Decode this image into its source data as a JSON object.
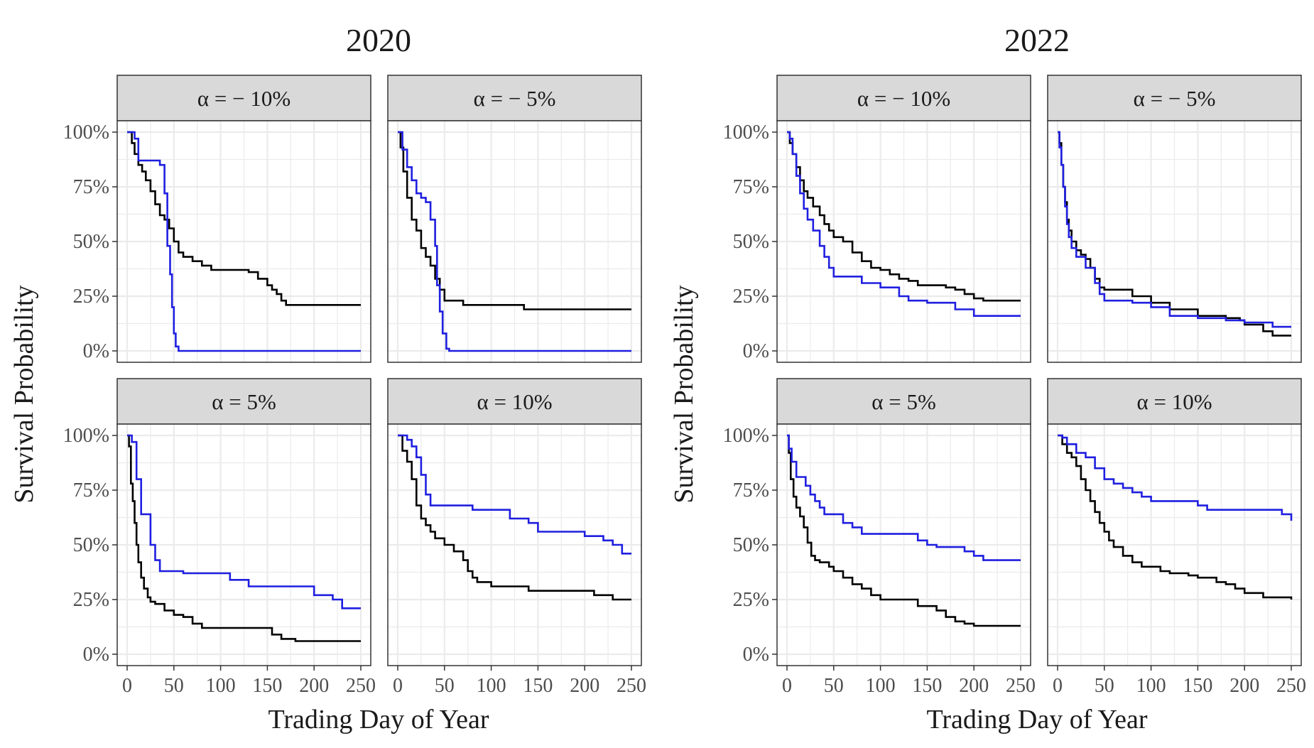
{
  "figure": {
    "groups": [
      {
        "title": "2020",
        "xlabel": "Trading Day of Year",
        "ylabel": "Survival Probability"
      },
      {
        "title": "2022",
        "xlabel": "Trading Day of Year",
        "ylabel": "Survival Probability"
      }
    ],
    "x_ticks": [
      "0",
      "50",
      "100",
      "150",
      "200",
      "250"
    ],
    "y_ticks": [
      "0%",
      "25%",
      "50%",
      "75%",
      "100%"
    ]
  },
  "colors": {
    "series_black": "#000000",
    "series_blue": "#1f1fe0",
    "strip_fill": "#d9d9d9",
    "grid": "#ebebeb",
    "panel_border": "#333333"
  },
  "chart_data": [
    {
      "type": "line",
      "group": "2020",
      "panel_label": "α = − 10%",
      "xlim": [
        0,
        250
      ],
      "ylim": [
        0,
        1
      ],
      "grid": true,
      "step": true,
      "series": [
        {
          "color": "black",
          "x": [
            0,
            5,
            8,
            12,
            16,
            20,
            25,
            30,
            35,
            40,
            45,
            50,
            55,
            60,
            70,
            80,
            90,
            100,
            120,
            130,
            140,
            150,
            155,
            160,
            165,
            170,
            180,
            250
          ],
          "y": [
            1,
            0.95,
            0.9,
            0.85,
            0.82,
            0.78,
            0.73,
            0.67,
            0.62,
            0.6,
            0.56,
            0.5,
            0.45,
            0.43,
            0.41,
            0.39,
            0.37,
            0.37,
            0.37,
            0.36,
            0.33,
            0.3,
            0.28,
            0.26,
            0.23,
            0.21,
            0.21,
            0.21
          ]
        },
        {
          "color": "blue",
          "x": [
            0,
            8,
            12,
            20,
            35,
            40,
            43,
            46,
            48,
            50,
            52,
            55,
            60,
            250
          ],
          "y": [
            1,
            0.97,
            0.87,
            0.87,
            0.85,
            0.72,
            0.48,
            0.35,
            0.2,
            0.08,
            0.02,
            0,
            0,
            0
          ]
        }
      ]
    },
    {
      "type": "line",
      "group": "2020",
      "panel_label": "α = − 5%",
      "xlim": [
        0,
        250
      ],
      "ylim": [
        0,
        1
      ],
      "grid": true,
      "step": true,
      "series": [
        {
          "color": "black",
          "x": [
            0,
            3,
            6,
            10,
            15,
            20,
            25,
            30,
            35,
            40,
            45,
            50,
            55,
            70,
            80,
            100,
            135,
            150,
            250
          ],
          "y": [
            1,
            0.93,
            0.82,
            0.7,
            0.6,
            0.55,
            0.47,
            0.43,
            0.39,
            0.33,
            0.28,
            0.23,
            0.23,
            0.21,
            0.21,
            0.21,
            0.19,
            0.19,
            0.19
          ]
        },
        {
          "color": "blue",
          "x": [
            0,
            5,
            10,
            15,
            20,
            25,
            30,
            35,
            40,
            42,
            45,
            48,
            52,
            55,
            60,
            250
          ],
          "y": [
            1,
            0.92,
            0.84,
            0.78,
            0.72,
            0.7,
            0.68,
            0.6,
            0.48,
            0.3,
            0.18,
            0.08,
            0.01,
            0,
            0,
            0
          ]
        }
      ]
    },
    {
      "type": "line",
      "group": "2020",
      "panel_label": "α = 5%",
      "xlim": [
        0,
        250
      ],
      "ylim": [
        0,
        1
      ],
      "grid": true,
      "step": true,
      "series": [
        {
          "color": "black",
          "x": [
            0,
            2,
            4,
            6,
            8,
            10,
            12,
            15,
            18,
            22,
            25,
            30,
            40,
            50,
            60,
            70,
            80,
            100,
            150,
            155,
            165,
            170,
            180,
            200,
            250
          ],
          "y": [
            1,
            0.95,
            0.78,
            0.7,
            0.6,
            0.5,
            0.42,
            0.35,
            0.3,
            0.26,
            0.24,
            0.23,
            0.2,
            0.18,
            0.17,
            0.14,
            0.12,
            0.12,
            0.12,
            0.09,
            0.07,
            0.07,
            0.06,
            0.06,
            0.06
          ]
        },
        {
          "color": "blue",
          "x": [
            0,
            5,
            10,
            15,
            25,
            30,
            35,
            50,
            60,
            80,
            100,
            110,
            120,
            130,
            150,
            190,
            200,
            220,
            230,
            250
          ],
          "y": [
            1,
            0.97,
            0.8,
            0.64,
            0.5,
            0.43,
            0.38,
            0.38,
            0.37,
            0.37,
            0.37,
            0.34,
            0.34,
            0.31,
            0.31,
            0.31,
            0.27,
            0.25,
            0.21,
            0.21
          ]
        }
      ]
    },
    {
      "type": "line",
      "group": "2020",
      "panel_label": "α = 10%",
      "xlim": [
        0,
        250
      ],
      "ylim": [
        0,
        1
      ],
      "grid": true,
      "step": true,
      "series": [
        {
          "color": "black",
          "x": [
            0,
            5,
            10,
            15,
            20,
            25,
            30,
            35,
            40,
            50,
            60,
            70,
            75,
            80,
            85,
            90,
            100,
            120,
            140,
            160,
            180,
            210,
            230,
            250
          ],
          "y": [
            1,
            0.93,
            0.88,
            0.8,
            0.68,
            0.62,
            0.59,
            0.56,
            0.53,
            0.5,
            0.47,
            0.43,
            0.38,
            0.35,
            0.33,
            0.33,
            0.31,
            0.31,
            0.29,
            0.29,
            0.29,
            0.27,
            0.25,
            0.25
          ]
        },
        {
          "color": "blue",
          "x": [
            0,
            10,
            15,
            20,
            25,
            30,
            35,
            50,
            80,
            100,
            120,
            130,
            140,
            150,
            190,
            200,
            220,
            230,
            240,
            250
          ],
          "y": [
            1,
            0.98,
            0.95,
            0.9,
            0.82,
            0.73,
            0.68,
            0.68,
            0.66,
            0.66,
            0.62,
            0.62,
            0.6,
            0.56,
            0.56,
            0.54,
            0.52,
            0.5,
            0.46,
            0.46
          ]
        }
      ]
    },
    {
      "type": "line",
      "group": "2022",
      "panel_label": "α = − 10%",
      "xlim": [
        0,
        250
      ],
      "ylim": [
        0,
        1
      ],
      "grid": true,
      "step": true,
      "series": [
        {
          "color": "black",
          "x": [
            0,
            3,
            6,
            10,
            14,
            18,
            22,
            28,
            35,
            40,
            45,
            50,
            60,
            70,
            80,
            90,
            100,
            110,
            120,
            130,
            140,
            150,
            170,
            180,
            190,
            200,
            210,
            250
          ],
          "y": [
            1,
            0.95,
            0.9,
            0.84,
            0.78,
            0.73,
            0.7,
            0.66,
            0.62,
            0.58,
            0.55,
            0.52,
            0.5,
            0.45,
            0.41,
            0.38,
            0.37,
            0.35,
            0.33,
            0.32,
            0.3,
            0.3,
            0.29,
            0.28,
            0.26,
            0.24,
            0.23,
            0.23
          ]
        },
        {
          "color": "blue",
          "x": [
            0,
            3,
            6,
            10,
            14,
            18,
            22,
            28,
            35,
            40,
            45,
            50,
            80,
            100,
            120,
            130,
            150,
            175,
            180,
            200,
            250
          ],
          "y": [
            1,
            0.97,
            0.9,
            0.8,
            0.72,
            0.65,
            0.6,
            0.55,
            0.48,
            0.43,
            0.38,
            0.34,
            0.31,
            0.29,
            0.25,
            0.23,
            0.22,
            0.22,
            0.19,
            0.16,
            0.16
          ]
        }
      ]
    },
    {
      "type": "line",
      "group": "2022",
      "panel_label": "α = − 5%",
      "xlim": [
        0,
        250
      ],
      "ylim": [
        0,
        1
      ],
      "grid": true,
      "step": true,
      "series": [
        {
          "color": "black",
          "x": [
            0,
            2,
            4,
            6,
            8,
            10,
            12,
            15,
            20,
            25,
            30,
            35,
            40,
            45,
            50,
            60,
            80,
            100,
            120,
            150,
            180,
            195,
            200,
            220,
            230,
            250
          ],
          "y": [
            1,
            0.95,
            0.85,
            0.75,
            0.68,
            0.6,
            0.55,
            0.5,
            0.46,
            0.44,
            0.42,
            0.38,
            0.33,
            0.29,
            0.28,
            0.28,
            0.25,
            0.22,
            0.19,
            0.16,
            0.15,
            0.14,
            0.12,
            0.09,
            0.07,
            0.07
          ]
        },
        {
          "color": "blue",
          "x": [
            0,
            2,
            4,
            6,
            8,
            10,
            12,
            15,
            20,
            30,
            40,
            45,
            50,
            80,
            100,
            120,
            150,
            180,
            200,
            230,
            250
          ],
          "y": [
            1,
            0.93,
            0.85,
            0.75,
            0.66,
            0.58,
            0.52,
            0.47,
            0.43,
            0.38,
            0.31,
            0.26,
            0.23,
            0.22,
            0.2,
            0.16,
            0.15,
            0.14,
            0.13,
            0.11,
            0.11
          ]
        }
      ]
    },
    {
      "type": "line",
      "group": "2022",
      "panel_label": "α = 5%",
      "xlim": [
        0,
        250
      ],
      "ylim": [
        0,
        1
      ],
      "grid": true,
      "step": true,
      "series": [
        {
          "color": "black",
          "x": [
            0,
            2,
            4,
            7,
            10,
            14,
            18,
            22,
            26,
            30,
            35,
            45,
            50,
            60,
            70,
            80,
            90,
            100,
            120,
            140,
            160,
            170,
            180,
            190,
            200,
            210,
            250
          ],
          "y": [
            1,
            0.92,
            0.8,
            0.72,
            0.67,
            0.63,
            0.58,
            0.51,
            0.45,
            0.43,
            0.42,
            0.4,
            0.38,
            0.35,
            0.32,
            0.3,
            0.27,
            0.25,
            0.25,
            0.22,
            0.2,
            0.17,
            0.15,
            0.14,
            0.13,
            0.13,
            0.13
          ]
        },
        {
          "color": "blue",
          "x": [
            0,
            2,
            5,
            10,
            20,
            25,
            30,
            35,
            40,
            60,
            70,
            80,
            100,
            140,
            150,
            160,
            190,
            200,
            210,
            250
          ],
          "y": [
            1,
            0.94,
            0.88,
            0.81,
            0.77,
            0.73,
            0.7,
            0.67,
            0.64,
            0.6,
            0.58,
            0.55,
            0.55,
            0.52,
            0.5,
            0.49,
            0.47,
            0.45,
            0.43,
            0.43
          ]
        }
      ]
    },
    {
      "type": "line",
      "group": "2022",
      "panel_label": "α = 10%",
      "xlim": [
        0,
        250
      ],
      "ylim": [
        0,
        1
      ],
      "grid": true,
      "step": true,
      "series": [
        {
          "color": "black",
          "x": [
            0,
            5,
            10,
            15,
            20,
            25,
            30,
            35,
            40,
            45,
            50,
            55,
            60,
            70,
            80,
            90,
            110,
            120,
            140,
            150,
            170,
            180,
            190,
            200,
            220,
            250
          ],
          "y": [
            1,
            0.96,
            0.92,
            0.9,
            0.86,
            0.8,
            0.75,
            0.7,
            0.65,
            0.6,
            0.56,
            0.52,
            0.49,
            0.45,
            0.42,
            0.4,
            0.38,
            0.37,
            0.36,
            0.35,
            0.33,
            0.32,
            0.3,
            0.28,
            0.26,
            0.25
          ]
        },
        {
          "color": "blue",
          "x": [
            0,
            5,
            10,
            20,
            30,
            40,
            50,
            60,
            70,
            80,
            90,
            100,
            150,
            160,
            200,
            220,
            240,
            250
          ],
          "y": [
            1,
            0.99,
            0.96,
            0.92,
            0.9,
            0.85,
            0.8,
            0.78,
            0.76,
            0.74,
            0.72,
            0.7,
            0.68,
            0.66,
            0.66,
            0.66,
            0.64,
            0.61
          ]
        }
      ]
    }
  ]
}
